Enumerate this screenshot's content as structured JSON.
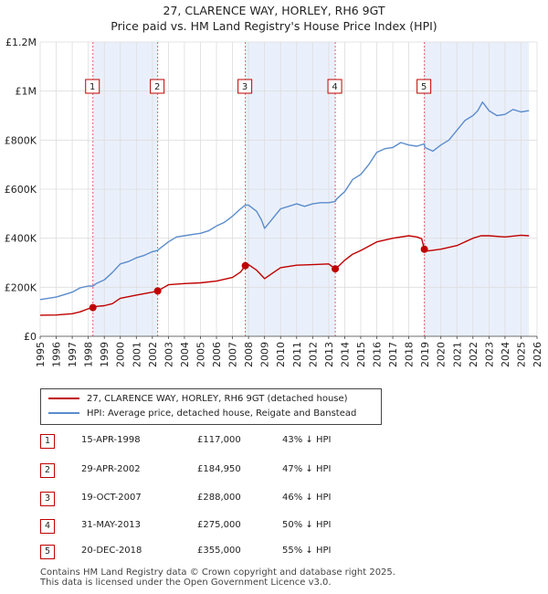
{
  "title": {
    "line1": "27, CLARENCE WAY, HORLEY, RH6 9GT",
    "line2": "Price paid vs. HM Land Registry's House Price Index (HPI)"
  },
  "legend": {
    "property": "27, CLARENCE WAY, HORLEY, RH6 9GT (detached house)",
    "hpi": "HPI: Average price, detached house, Reigate and Banstead"
  },
  "transactions": [
    {
      "num": "1",
      "date": "15-APR-1998",
      "price": "£117,000",
      "hpi": "43% ↓ HPI"
    },
    {
      "num": "2",
      "date": "29-APR-2002",
      "price": "£184,950",
      "hpi": "47% ↓ HPI"
    },
    {
      "num": "3",
      "date": "19-OCT-2007",
      "price": "£288,000",
      "hpi": "46% ↓ HPI"
    },
    {
      "num": "4",
      "date": "31-MAY-2013",
      "price": "£275,000",
      "hpi": "50% ↓ HPI"
    },
    {
      "num": "5",
      "date": "20-DEC-2018",
      "price": "£355,000",
      "hpi": "55% ↓ HPI"
    }
  ],
  "footer": {
    "line1": "Contains HM Land Registry data © Crown copyright and database right 2025.",
    "line2": "This data is licensed under the Open Government Licence v3.0."
  },
  "colors": {
    "property": "#c00000",
    "hpi": "#5b8ccc",
    "shade": "#eaf0fb",
    "grid": "#dddddd",
    "marker_line": "#e06070"
  },
  "chart_data": {
    "type": "line",
    "xlim": [
      1995,
      2026
    ],
    "ylim": [
      0,
      1200000
    ],
    "x_ticks": [
      "1995",
      "1996",
      "1997",
      "1998",
      "1999",
      "2000",
      "2001",
      "2002",
      "2003",
      "2004",
      "2005",
      "2006",
      "2007",
      "2008",
      "2009",
      "2010",
      "2011",
      "2012",
      "2013",
      "2014",
      "2015",
      "2016",
      "2017",
      "2018",
      "2019",
      "2020",
      "2021",
      "2022",
      "2023",
      "2024",
      "2025",
      "2026"
    ],
    "y_ticks": [
      {
        "value": 0,
        "label": "£0"
      },
      {
        "value": 200000,
        "label": "£200K"
      },
      {
        "value": 400000,
        "label": "£400K"
      },
      {
        "value": 600000,
        "label": "£600K"
      },
      {
        "value": 800000,
        "label": "£800K"
      },
      {
        "value": 1000000,
        "label": "£1M"
      },
      {
        "value": 1200000,
        "label": "£1.2M"
      }
    ],
    "grid": true,
    "shaded_spans": [
      [
        1998.29,
        2002.33
      ],
      [
        2007.8,
        2013.41
      ],
      [
        2018.97,
        2025.5
      ]
    ],
    "sales": [
      {
        "label": "1",
        "x": 1998.29,
        "y": 117000
      },
      {
        "label": "2",
        "x": 2002.33,
        "y": 184950
      },
      {
        "label": "3",
        "x": 2007.8,
        "y": 288000
      },
      {
        "label": "4",
        "x": 2013.41,
        "y": 275000
      },
      {
        "label": "5",
        "x": 2018.97,
        "y": 355000
      }
    ],
    "series": [
      {
        "name": "HPI: Average price, detached house, Reigate and Banstead",
        "x": [
          1995.0,
          1995.5,
          1996.0,
          1996.5,
          1997.0,
          1997.5,
          1998.0,
          1998.29,
          1998.5,
          1999.0,
          1999.5,
          2000.0,
          2000.5,
          2001.0,
          2001.5,
          2002.0,
          2002.33,
          2002.5,
          2003.0,
          2003.5,
          2004.0,
          2004.5,
          2005.0,
          2005.5,
          2006.0,
          2006.5,
          2007.0,
          2007.5,
          2007.8,
          2008.0,
          2008.5,
          2008.8,
          2009.0,
          2009.5,
          2010.0,
          2010.5,
          2011.0,
          2011.5,
          2012.0,
          2012.5,
          2013.0,
          2013.41,
          2013.5,
          2014.0,
          2014.5,
          2015.0,
          2015.5,
          2016.0,
          2016.5,
          2017.0,
          2017.5,
          2018.0,
          2018.5,
          2018.97,
          2019.0,
          2019.5,
          2020.0,
          2020.5,
          2021.0,
          2021.5,
          2022.0,
          2022.3,
          2022.6,
          2023.0,
          2023.5,
          2024.0,
          2024.5,
          2025.0,
          2025.5
        ],
        "values": [
          150000,
          155000,
          160000,
          170000,
          180000,
          198000,
          205000,
          205000,
          215000,
          230000,
          260000,
          295000,
          305000,
          320000,
          330000,
          345000,
          350000,
          360000,
          385000,
          405000,
          410000,
          415000,
          420000,
          430000,
          450000,
          465000,
          490000,
          520000,
          535000,
          535000,
          510000,
          475000,
          440000,
          480000,
          520000,
          530000,
          540000,
          530000,
          540000,
          545000,
          545000,
          550000,
          560000,
          590000,
          640000,
          660000,
          700000,
          750000,
          765000,
          770000,
          790000,
          780000,
          775000,
          785000,
          770000,
          755000,
          780000,
          800000,
          840000,
          880000,
          900000,
          920000,
          955000,
          920000,
          900000,
          905000,
          925000,
          915000,
          920000
        ]
      },
      {
        "name": "27, CLARENCE WAY, HORLEY, RH6 9GT (detached house)",
        "x": [
          1995.0,
          1996.0,
          1997.0,
          1997.5,
          1998.0,
          1998.29,
          1998.5,
          1999.0,
          1999.5,
          2000.0,
          2001.0,
          2002.0,
          2002.33,
          2002.6,
          2003.0,
          2004.0,
          2005.0,
          2006.0,
          2007.0,
          2007.5,
          2007.8,
          2008.0,
          2008.5,
          2009.0,
          2009.5,
          2010.0,
          2011.0,
          2012.0,
          2013.0,
          2013.41,
          2013.6,
          2014.0,
          2014.5,
          2015.0,
          2016.0,
          2017.0,
          2018.0,
          2018.5,
          2018.8,
          2018.97,
          2019.2,
          2020.0,
          2021.0,
          2022.0,
          2022.5,
          2023.0,
          2024.0,
          2025.0,
          2025.5
        ],
        "values": [
          86000,
          87000,
          92000,
          100000,
          112000,
          117000,
          122000,
          125000,
          133000,
          155000,
          168000,
          180000,
          184950,
          195000,
          210000,
          215000,
          218000,
          225000,
          240000,
          262000,
          288000,
          292000,
          270000,
          235000,
          258000,
          280000,
          290000,
          292000,
          295000,
          275000,
          285000,
          310000,
          335000,
          350000,
          385000,
          400000,
          410000,
          405000,
          398000,
          355000,
          348000,
          355000,
          370000,
          400000,
          410000,
          410000,
          405000,
          412000,
          410000
        ]
      }
    ]
  }
}
